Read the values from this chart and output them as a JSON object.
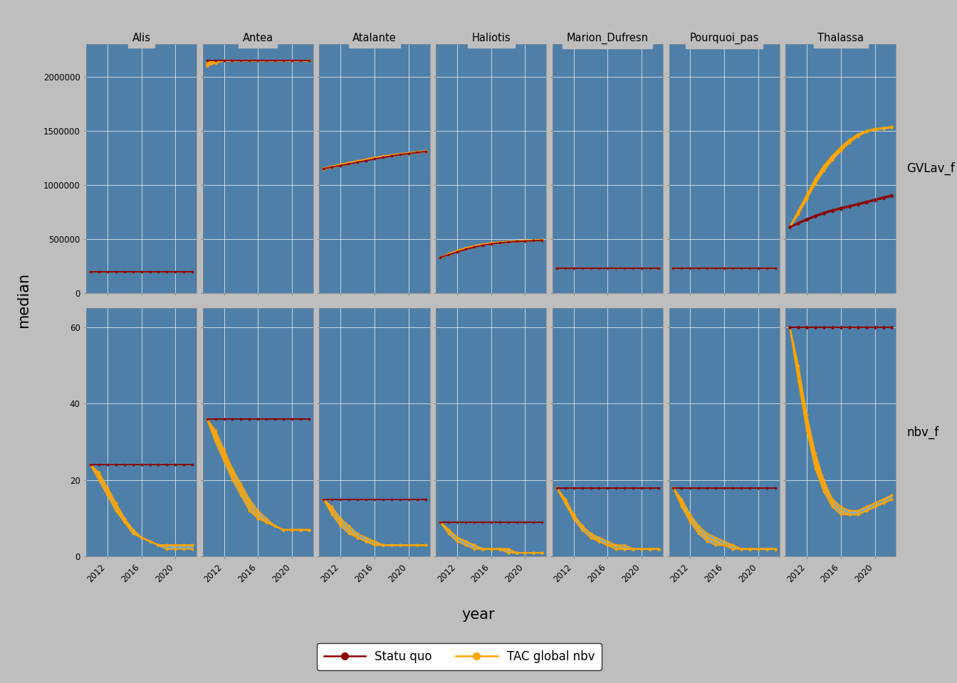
{
  "fleets": [
    "Alis",
    "Antea",
    "Atalante",
    "Haliotis",
    "Marion_Dufresn",
    "Pourquoi_pas",
    "Thalassa"
  ],
  "variables": [
    "GVLav_f",
    "nbv_f"
  ],
  "years": [
    2010,
    2011,
    2012,
    2013,
    2014,
    2015,
    2016,
    2017,
    2018,
    2019,
    2020,
    2021,
    2022
  ],
  "statu_quo_color": "#8B0000",
  "tac_color": "#FFA500",
  "panel_bg": "#4E7FA8",
  "outer_bg": "#BEBEBE",
  "header_bg": "#BEBEBE",
  "grid_color": "#FFFFFF",
  "ribbon_color": "#ADD8E6",
  "ylim_GVLav_f": [
    0,
    2300000
  ],
  "ylim_nbv_f": [
    0,
    65
  ],
  "yticks_GVLav_f": [
    0,
    500000,
    1000000,
    1500000,
    2000000
  ],
  "yticks_nbv_f": [
    0,
    20,
    40,
    60
  ],
  "GVLav_f_data": {
    "Alis": {
      "statu_quo": [
        [
          200000,
          200000,
          200000,
          200000,
          200000,
          200000,
          200000,
          200000,
          200000,
          200000,
          200000,
          200000,
          200000
        ]
      ],
      "tac": [
        [
          200000,
          200000,
          200000,
          200000,
          200000,
          200000,
          200000,
          200000,
          200000,
          200000,
          200000,
          200000,
          200000
        ]
      ]
    },
    "Antea": {
      "statu_quo": [
        [
          2150000,
          2150000,
          2150000,
          2150000,
          2150000,
          2150000,
          2150000,
          2150000,
          2150000,
          2150000,
          2150000,
          2150000,
          2150000
        ]
      ],
      "tac": [
        [
          2120000,
          2140000,
          2150000,
          2150000,
          2150000,
          2150000,
          2150000,
          2150000,
          2150000,
          2150000,
          2150000,
          2150000,
          2150000
        ],
        [
          2130000,
          2145000,
          2150000,
          2150000,
          2150000,
          2150000,
          2150000,
          2150000,
          2150000,
          2150000,
          2150000,
          2150000,
          2150000
        ],
        [
          2110000,
          2132000,
          2148000,
          2150000,
          2150000,
          2150000,
          2150000,
          2150000,
          2150000,
          2150000,
          2150000,
          2150000,
          2150000
        ],
        [
          2135000,
          2147000,
          2150000,
          2150000,
          2150000,
          2150000,
          2150000,
          2150000,
          2150000,
          2150000,
          2150000,
          2150000,
          2150000
        ],
        [
          2100000,
          2128000,
          2148000,
          2150000,
          2150000,
          2150000,
          2150000,
          2150000,
          2150000,
          2150000,
          2150000,
          2150000,
          2150000
        ]
      ]
    },
    "Atalante": {
      "statu_quo": [
        [
          1150000,
          1165000,
          1180000,
          1195000,
          1210000,
          1225000,
          1240000,
          1255000,
          1268000,
          1280000,
          1290000,
          1300000,
          1310000
        ]
      ],
      "tac": [
        [
          1150000,
          1168000,
          1185000,
          1200000,
          1215000,
          1232000,
          1248000,
          1262000,
          1273000,
          1283000,
          1292000,
          1302000,
          1312000
        ],
        [
          1150000,
          1170000,
          1188000,
          1204000,
          1220000,
          1236000,
          1252000,
          1265000,
          1276000,
          1286000,
          1295000,
          1304000,
          1313000
        ],
        [
          1145000,
          1163000,
          1180000,
          1196000,
          1212000,
          1228000,
          1244000,
          1258000,
          1270000,
          1280000,
          1289000,
          1299000,
          1310000
        ],
        [
          1155000,
          1173000,
          1191000,
          1207000,
          1222000,
          1238000,
          1254000,
          1267000,
          1278000,
          1288000,
          1297000,
          1306000,
          1315000
        ],
        [
          1148000,
          1166000,
          1183000,
          1199000,
          1215000,
          1231000,
          1247000,
          1261000,
          1272000,
          1282000,
          1292000,
          1301000,
          1311000
        ]
      ]
    },
    "Haliotis": {
      "statu_quo": [
        [
          330000,
          355000,
          380000,
          405000,
          425000,
          442000,
          455000,
          464000,
          471000,
          477000,
          481000,
          485000,
          488000
        ]
      ],
      "tac": [
        [
          330000,
          358000,
          385000,
          410000,
          430000,
          447000,
          459000,
          468000,
          474000,
          479000,
          483000,
          487000,
          490000
        ],
        [
          330000,
          362000,
          390000,
          415000,
          434000,
          450000,
          462000,
          470000,
          476000,
          481000,
          485000,
          488000,
          491000
        ],
        [
          330000,
          355000,
          382000,
          407000,
          427000,
          444000,
          456000,
          465000,
          472000,
          477000,
          481000,
          485000,
          488000
        ],
        [
          330000,
          360000,
          388000,
          413000,
          432000,
          449000,
          461000,
          469000,
          475000,
          480000,
          484000,
          487000,
          490000
        ],
        [
          330000,
          364000,
          393000,
          418000,
          437000,
          453000,
          464000,
          472000,
          478000,
          482000,
          486000,
          489000,
          492000
        ]
      ]
    },
    "Marion_Dufresn": {
      "statu_quo": [
        [
          230000,
          230000,
          230000,
          230000,
          230000,
          230000,
          230000,
          230000,
          230000,
          230000,
          230000,
          230000,
          230000
        ]
      ],
      "tac": [
        [
          230000,
          230000,
          230000,
          230000,
          230000,
          230000,
          230000,
          230000,
          230000,
          230000,
          230000,
          230000,
          230000
        ]
      ]
    },
    "Pourquoi_pas": {
      "statu_quo": [
        [
          230000,
          230000,
          230000,
          230000,
          230000,
          230000,
          230000,
          230000,
          230000,
          230000,
          230000,
          230000,
          230000
        ]
      ],
      "tac": [
        [
          230000,
          230000,
          230000,
          230000,
          230000,
          230000,
          230000,
          230000,
          230000,
          230000,
          230000,
          230000,
          230000
        ]
      ]
    },
    "Thalassa": {
      "statu_quo": [
        [
          610000,
          645000,
          680000,
          710000,
          738000,
          762000,
          782000,
          800000,
          820000,
          840000,
          860000,
          880000,
          900000
        ],
        [
          610000,
          648000,
          684000,
          714000,
          742000,
          766000,
          786000,
          804000,
          824000,
          844000,
          864000,
          884000,
          904000
        ],
        [
          610000,
          642000,
          677000,
          707000,
          735000,
          759000,
          779000,
          797000,
          817000,
          837000,
          857000,
          877000,
          897000
        ],
        [
          610000,
          646000,
          681000,
          711000,
          739000,
          763000,
          783000,
          801000,
          821000,
          841000,
          861000,
          881000,
          901000
        ],
        [
          610000,
          650000,
          686000,
          716000,
          744000,
          768000,
          788000,
          806000,
          826000,
          846000,
          866000,
          886000,
          906000
        ]
      ],
      "tac": [
        [
          610000,
          730000,
          870000,
          1010000,
          1130000,
          1230000,
          1315000,
          1390000,
          1450000,
          1490000,
          1510000,
          1520000,
          1530000
        ],
        [
          610000,
          750000,
          895000,
          1040000,
          1160000,
          1255000,
          1338000,
          1408000,
          1462000,
          1498000,
          1516000,
          1525000,
          1535000
        ],
        [
          610000,
          740000,
          882000,
          1025000,
          1145000,
          1242000,
          1326000,
          1398000,
          1455000,
          1494000,
          1512000,
          1522000,
          1532000
        ],
        [
          610000,
          755000,
          902000,
          1048000,
          1168000,
          1262000,
          1344000,
          1413000,
          1465000,
          1500000,
          1518000,
          1527000,
          1537000
        ],
        [
          610000,
          760000,
          910000,
          1058000,
          1178000,
          1270000,
          1350000,
          1418000,
          1468000,
          1502000,
          1520000,
          1528000,
          1538000
        ]
      ]
    }
  },
  "nbv_f_data": {
    "Alis": {
      "statu_quo": [
        [
          24,
          24,
          24,
          24,
          24,
          24,
          24,
          24,
          24,
          24,
          24,
          24,
          24
        ]
      ],
      "tac": [
        [
          24,
          21,
          17,
          13,
          10,
          7,
          5,
          4,
          3,
          3,
          3,
          3,
          3
        ],
        [
          24,
          20,
          16,
          12,
          9,
          6,
          5,
          4,
          3,
          2,
          2,
          2,
          2
        ],
        [
          24,
          22,
          18,
          14,
          10,
          7,
          5,
          4,
          3,
          3,
          3,
          3,
          3
        ],
        [
          24,
          21,
          17,
          13,
          9,
          7,
          5,
          4,
          3,
          3,
          3,
          3,
          3
        ],
        [
          24,
          22,
          18,
          14,
          10,
          7,
          5,
          4,
          3,
          3,
          3,
          3,
          3
        ]
      ]
    },
    "Antea": {
      "statu_quo": [
        [
          36,
          36,
          36,
          36,
          36,
          36,
          36,
          36,
          36,
          36,
          36,
          36,
          36
        ]
      ],
      "tac": [
        [
          36,
          32,
          27,
          22,
          18,
          14,
          11,
          9,
          8,
          7,
          7,
          7,
          7
        ],
        [
          36,
          31,
          26,
          21,
          17,
          13,
          10,
          9,
          8,
          7,
          7,
          7,
          7
        ],
        [
          36,
          33,
          28,
          23,
          19,
          15,
          12,
          10,
          8,
          7,
          7,
          7,
          7
        ],
        [
          36,
          32,
          27,
          22,
          18,
          14,
          11,
          9,
          8,
          7,
          7,
          7,
          7
        ],
        [
          36,
          30,
          25,
          20,
          16,
          12,
          10,
          9,
          8,
          7,
          7,
          7,
          7
        ]
      ]
    },
    "Atalante": {
      "statu_quo": [
        [
          15,
          15,
          15,
          15,
          15,
          15,
          15,
          15,
          15,
          15,
          15,
          15,
          15
        ]
      ],
      "tac": [
        [
          15,
          12,
          9,
          7,
          5,
          4,
          4,
          3,
          3,
          3,
          3,
          3,
          3
        ],
        [
          15,
          11,
          8,
          6,
          5,
          4,
          3,
          3,
          3,
          3,
          3,
          3,
          3
        ],
        [
          15,
          13,
          10,
          8,
          6,
          5,
          4,
          3,
          3,
          3,
          3,
          3,
          3
        ],
        [
          15,
          12,
          9,
          7,
          5,
          4,
          4,
          3,
          3,
          3,
          3,
          3,
          3
        ],
        [
          15,
          12,
          9,
          7,
          5,
          4,
          3,
          3,
          3,
          3,
          3,
          3,
          3
        ]
      ]
    },
    "Haliotis": {
      "statu_quo": [
        [
          9,
          9,
          9,
          9,
          9,
          9,
          9,
          9,
          9,
          9,
          9,
          9,
          9
        ]
      ],
      "tac": [
        [
          9,
          7,
          5,
          4,
          3,
          2,
          2,
          2,
          2,
          1,
          1,
          1,
          1
        ],
        [
          9,
          7,
          5,
          4,
          3,
          2,
          2,
          2,
          1,
          1,
          1,
          1,
          1
        ],
        [
          9,
          7,
          5,
          4,
          3,
          2,
          2,
          2,
          2,
          1,
          1,
          1,
          1
        ],
        [
          9,
          7,
          5,
          4,
          3,
          2,
          2,
          2,
          2,
          1,
          1,
          1,
          1
        ],
        [
          9,
          6,
          4,
          3,
          2,
          2,
          2,
          2,
          1,
          1,
          1,
          1,
          1
        ]
      ]
    },
    "Marion_Dufresn": {
      "statu_quo": [
        [
          18,
          18,
          18,
          18,
          18,
          18,
          18,
          18,
          18,
          18,
          18,
          18,
          18
        ]
      ],
      "tac": [
        [
          18,
          15,
          11,
          8,
          6,
          4,
          3,
          3,
          2,
          2,
          2,
          2,
          2
        ],
        [
          18,
          14,
          10,
          7,
          5,
          4,
          3,
          2,
          2,
          2,
          2,
          2,
          2
        ],
        [
          18,
          15,
          11,
          8,
          6,
          5,
          4,
          3,
          3,
          2,
          2,
          2,
          2
        ],
        [
          18,
          15,
          11,
          8,
          6,
          4,
          3,
          3,
          2,
          2,
          2,
          2,
          2
        ],
        [
          18,
          14,
          10,
          7,
          5,
          4,
          3,
          2,
          2,
          2,
          2,
          2,
          2
        ]
      ]
    },
    "Pourquoi_pas": {
      "statu_quo": [
        [
          18,
          18,
          18,
          18,
          18,
          18,
          18,
          18,
          18,
          18,
          18,
          18,
          18
        ]
      ],
      "tac": [
        [
          18,
          14,
          10,
          7,
          5,
          4,
          3,
          3,
          2,
          2,
          2,
          2,
          2
        ],
        [
          18,
          13,
          9,
          6,
          4,
          3,
          3,
          2,
          2,
          2,
          2,
          2,
          2
        ],
        [
          18,
          15,
          11,
          8,
          6,
          5,
          4,
          3,
          2,
          2,
          2,
          2,
          2
        ],
        [
          18,
          14,
          10,
          7,
          5,
          4,
          3,
          3,
          2,
          2,
          2,
          2,
          2
        ],
        [
          18,
          14,
          10,
          7,
          5,
          4,
          3,
          2,
          2,
          2,
          2,
          2,
          2
        ]
      ]
    },
    "Thalassa": {
      "statu_quo": [
        [
          60,
          60,
          60,
          60,
          60,
          60,
          60,
          60,
          60,
          60,
          60,
          60,
          60
        ],
        [
          60,
          60,
          60,
          60,
          60,
          60,
          60,
          60,
          60,
          60,
          60,
          60,
          60
        ],
        [
          60,
          60,
          60,
          60,
          60,
          60,
          60,
          60,
          60,
          60,
          60,
          60,
          60
        ],
        [
          60,
          60,
          60,
          60,
          60,
          60,
          60,
          60,
          60,
          60,
          60,
          60,
          60
        ],
        [
          60,
          60,
          60,
          60,
          60,
          60,
          60,
          60,
          60,
          60,
          60,
          60,
          60
        ]
      ],
      "tac": [
        [
          60,
          48,
          35,
          25,
          18,
          14,
          12,
          11,
          11,
          12,
          13,
          14,
          15
        ],
        [
          60,
          46,
          33,
          23,
          17,
          13,
          11,
          11,
          11,
          12,
          13,
          14,
          15
        ],
        [
          60,
          50,
          37,
          27,
          20,
          15,
          13,
          12,
          12,
          13,
          14,
          15,
          16
        ],
        [
          60,
          47,
          34,
          24,
          18,
          14,
          12,
          11,
          11,
          12,
          13,
          14,
          15
        ],
        [
          60,
          49,
          36,
          26,
          19,
          15,
          13,
          12,
          12,
          13,
          14,
          15,
          16
        ]
      ]
    }
  },
  "legend_sq_color": "#8B0000",
  "legend_tac_color": "#FFA500",
  "xlabel": "year",
  "ylabel": "median"
}
